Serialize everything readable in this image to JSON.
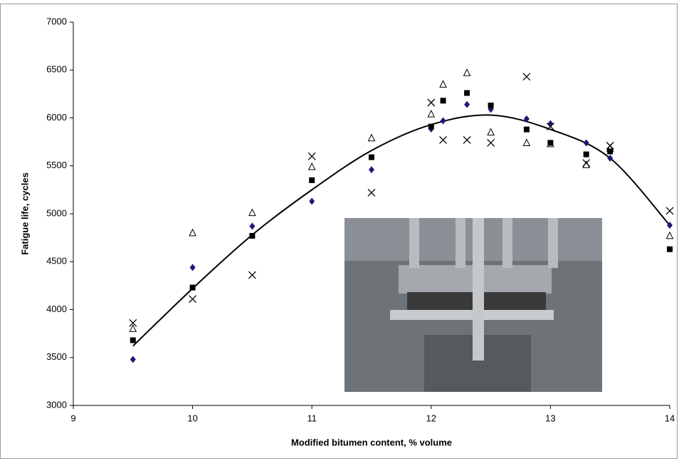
{
  "chart_data": {
    "type": "scatter",
    "x_label": "Modified bitumen content, % volume",
    "y_label": "Fatigue life, cycles",
    "xlim": [
      9,
      14
    ],
    "xticks": [
      9,
      10,
      11,
      12,
      13,
      14
    ],
    "ylim": [
      3000,
      7000
    ],
    "yticks": [
      3000,
      3500,
      4000,
      4500,
      5000,
      5500,
      6000,
      6500,
      7000
    ],
    "grid": false,
    "x": [
      9.5,
      10,
      10.5,
      11,
      11.5,
      12,
      12.1,
      12.3,
      12.5,
      12.8,
      13,
      13.3,
      13.5,
      14
    ],
    "series": [
      {
        "marker": "diamond",
        "color": "#1a1a7a",
        "values": [
          3480,
          4440,
          4870,
          5130,
          5460,
          5885,
          5970,
          6140,
          6090,
          5990,
          5940,
          5740,
          5580,
          4880
        ]
      },
      {
        "marker": "square",
        "color": "#000000",
        "values": [
          3680,
          4230,
          4770,
          5350,
          5590,
          5910,
          6180,
          6260,
          6130,
          5880,
          5740,
          5620,
          5650,
          4630
        ]
      },
      {
        "marker": "triangle",
        "color": "#000000",
        "values": [
          3800,
          4800,
          5010,
          5490,
          5790,
          6040,
          6350,
          6470,
          5850,
          5740,
          5730,
          5510,
          5680,
          4770
        ]
      },
      {
        "marker": "cross",
        "color": "#000000",
        "values": [
          3860,
          4110,
          4360,
          5600,
          5220,
          6160,
          5770,
          5770,
          5740,
          6430,
          5910,
          5530,
          5710,
          5030
        ]
      }
    ],
    "trend": {
      "color": "#000000",
      "x": [
        9.5,
        10,
        10.5,
        11,
        11.5,
        12,
        12.5,
        13,
        13.5,
        14
      ],
      "values": [
        3620,
        4220,
        4780,
        5250,
        5660,
        5930,
        6030,
        5880,
        5580,
        4880
      ]
    }
  }
}
